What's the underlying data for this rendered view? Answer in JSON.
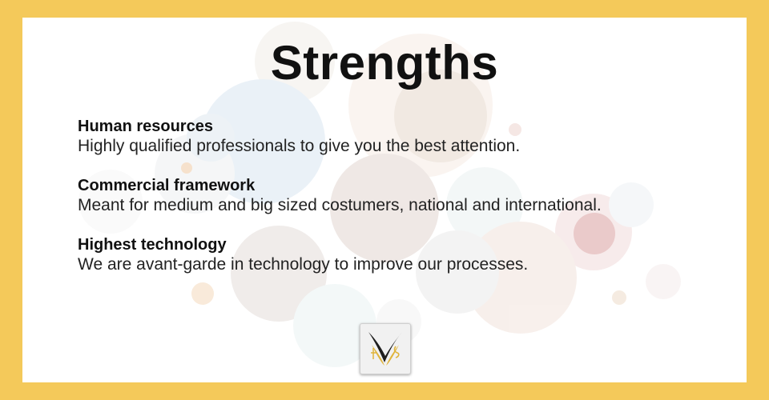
{
  "slide": {
    "title": "Strengths",
    "items": [
      {
        "heading": "Human resources",
        "text": "Highly qualified professionals to give you the best attention."
      },
      {
        "heading": "Commercial framework",
        "text": "Meant for medium and big sized costumers, national and international."
      },
      {
        "heading": "Highest technology",
        "text": "We are avant-garde in technology to improve our processes."
      }
    ]
  },
  "colors": {
    "frame": "#F4C95A",
    "panel": "#FFFFFF",
    "text": "#111111",
    "logo_gold": "#E0B43A"
  },
  "icons": {
    "logo": "winged-logo-icon"
  }
}
